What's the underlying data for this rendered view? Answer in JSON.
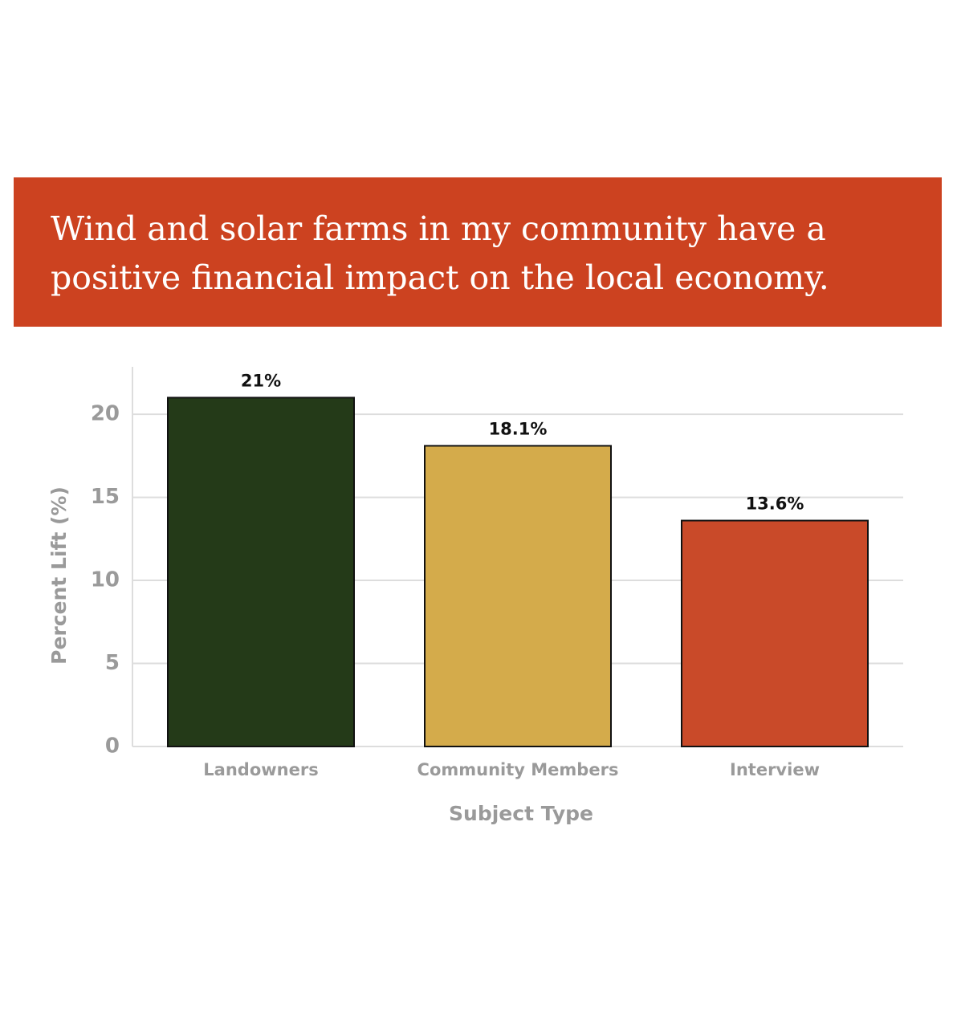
{
  "chart_data": {
    "type": "bar",
    "title": "Wind and solar farms in my community have a positive financial impact on the local economy.",
    "categories": [
      "Landowners",
      "Community Members",
      "Interview"
    ],
    "values": [
      21,
      18.1,
      13.6
    ],
    "value_labels": [
      "21%",
      "18.1%",
      "13.6%"
    ],
    "colors": [
      "#243a18",
      "#d4ab4b",
      "#c94a29"
    ],
    "ylim": [
      0,
      23
    ],
    "yticks": [
      0,
      5,
      10,
      15,
      20
    ],
    "grid": true,
    "xlabel": "Subject Type",
    "ylabel": "Percent Lift (%)"
  }
}
